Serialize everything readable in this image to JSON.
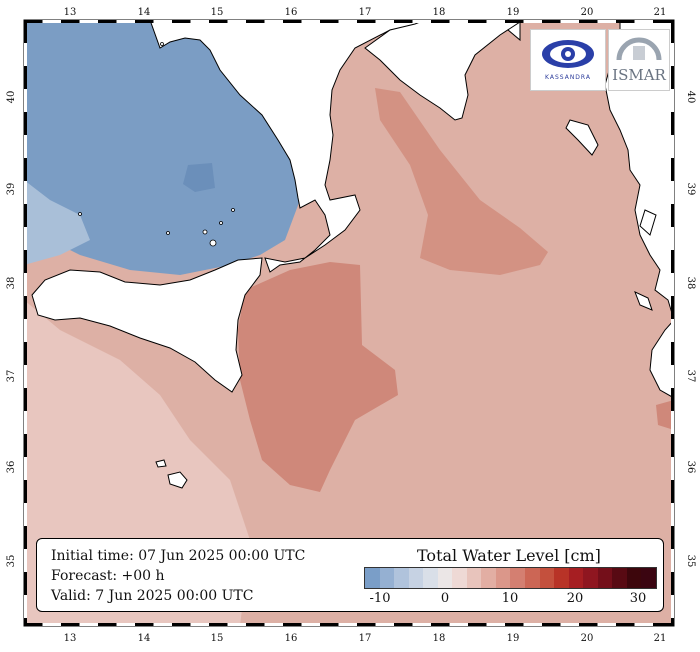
{
  "map": {
    "top_lon_labels": [
      "13",
      "14",
      "15",
      "16",
      "17",
      "18",
      "19",
      "20",
      "21"
    ],
    "bottom_lon_labels": [
      "13",
      "14",
      "15",
      "16",
      "17",
      "18",
      "19",
      "20",
      "21"
    ],
    "left_lat_labels": [
      "40",
      "39",
      "38",
      "37",
      "36",
      "35"
    ],
    "right_lat_labels": [
      "40",
      "39",
      "38",
      "37",
      "36",
      "35"
    ],
    "land_color": "#ffffff",
    "sea_positive_color": "#dda89e",
    "sea_negative_color": "#7ea0c8"
  },
  "info": {
    "initial_time": "Initial time: 07 Jun 2025 00:00 UTC",
    "forecast": "Forecast: +00 h",
    "valid": "Valid:  7 Jun 2025 00:00 UTC"
  },
  "legend": {
    "title": "Total Water Level [cm]",
    "tick_labels": [
      "-10",
      "0",
      "10",
      "20",
      "30"
    ],
    "colors": [
      "#7a9ec8",
      "#95b0d2",
      "#b0c3dc",
      "#c6d2e3",
      "#d9dfe8",
      "#ebe6e6",
      "#eed9d5",
      "#e8c4bc",
      "#e2aea3",
      "#db978a",
      "#d47f71",
      "#cc6655",
      "#c4503d",
      "#b83327",
      "#a61e22",
      "#8f1620",
      "#740f1a",
      "#580a13",
      "#3d060c",
      "#3b0511"
    ]
  },
  "logos": {
    "left_text": "KASSANDRA",
    "right_text": "ISMAR"
  }
}
